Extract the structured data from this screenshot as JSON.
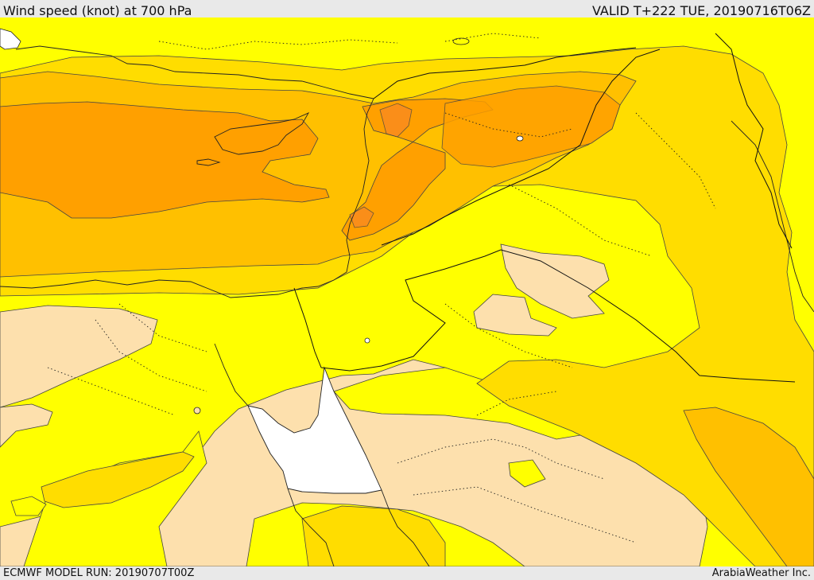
{
  "header": {
    "title": "Wind speed (knot) at 700 hPa",
    "valid": "VALID T+222 TUE, 20190716T06Z"
  },
  "footer": {
    "model_run": "ECMWF MODEL RUN: 20190707T00Z",
    "credit": "ArabiaWeather Inc."
  },
  "colors": {
    "band_lt_10": "#fde0ad",
    "band_10_15": "#ffff00",
    "band_15_20": "#ffdd00",
    "band_20_25": "#ffc000",
    "band_25_30": "#ffa000",
    "band_30_35": "#f98a20",
    "water_mask": "#ffffff",
    "lines": "#222222"
  }
}
